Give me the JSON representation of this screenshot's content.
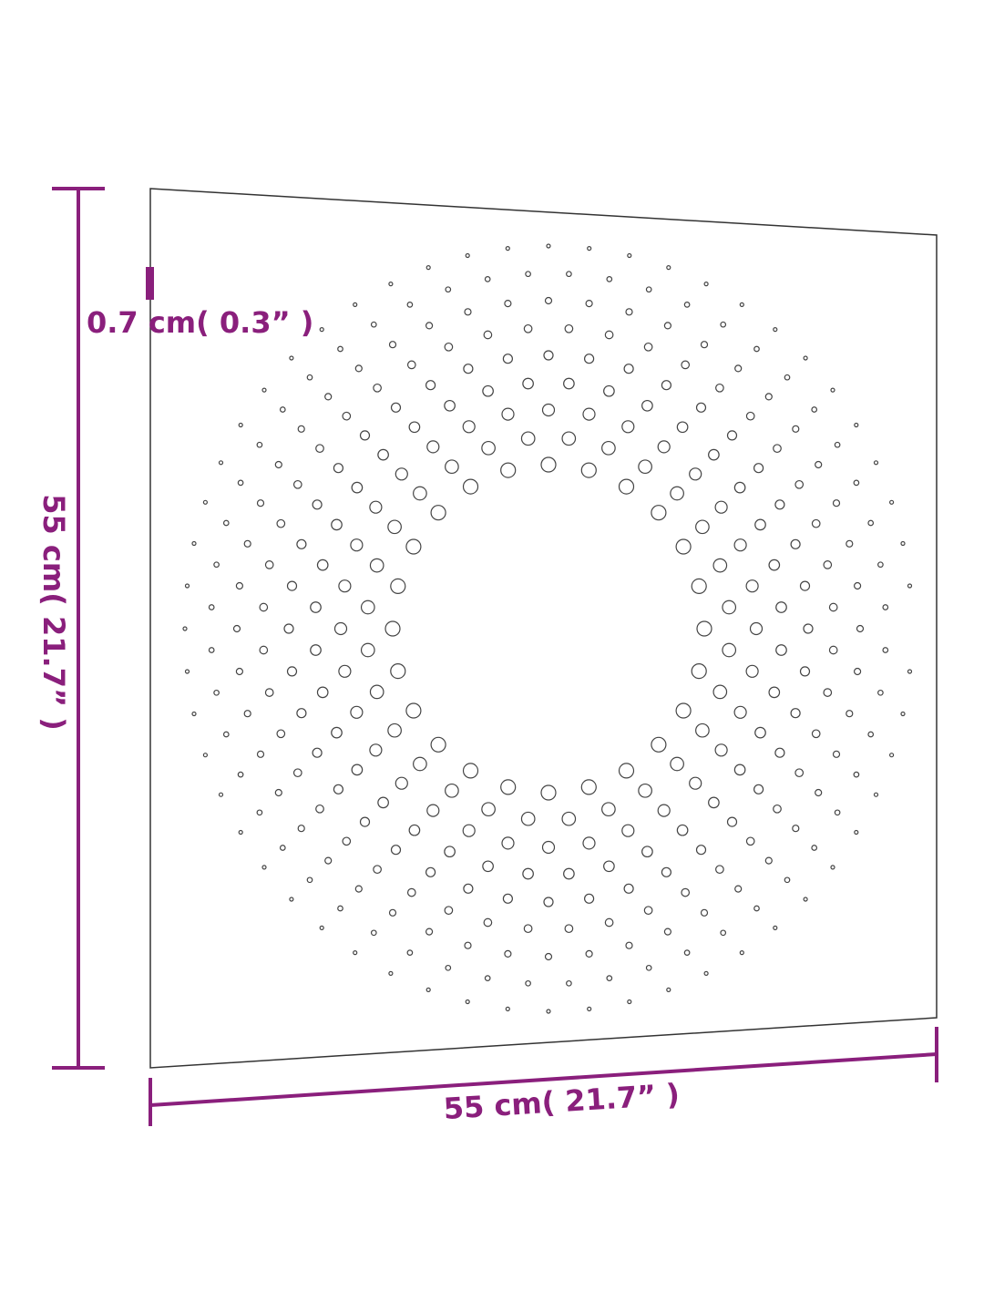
{
  "dimensions": {
    "thickness": "0.7 cm( 0.3” )",
    "height": "55 cm( 21.7” )",
    "width": "55 cm( 21.7” )"
  }
}
